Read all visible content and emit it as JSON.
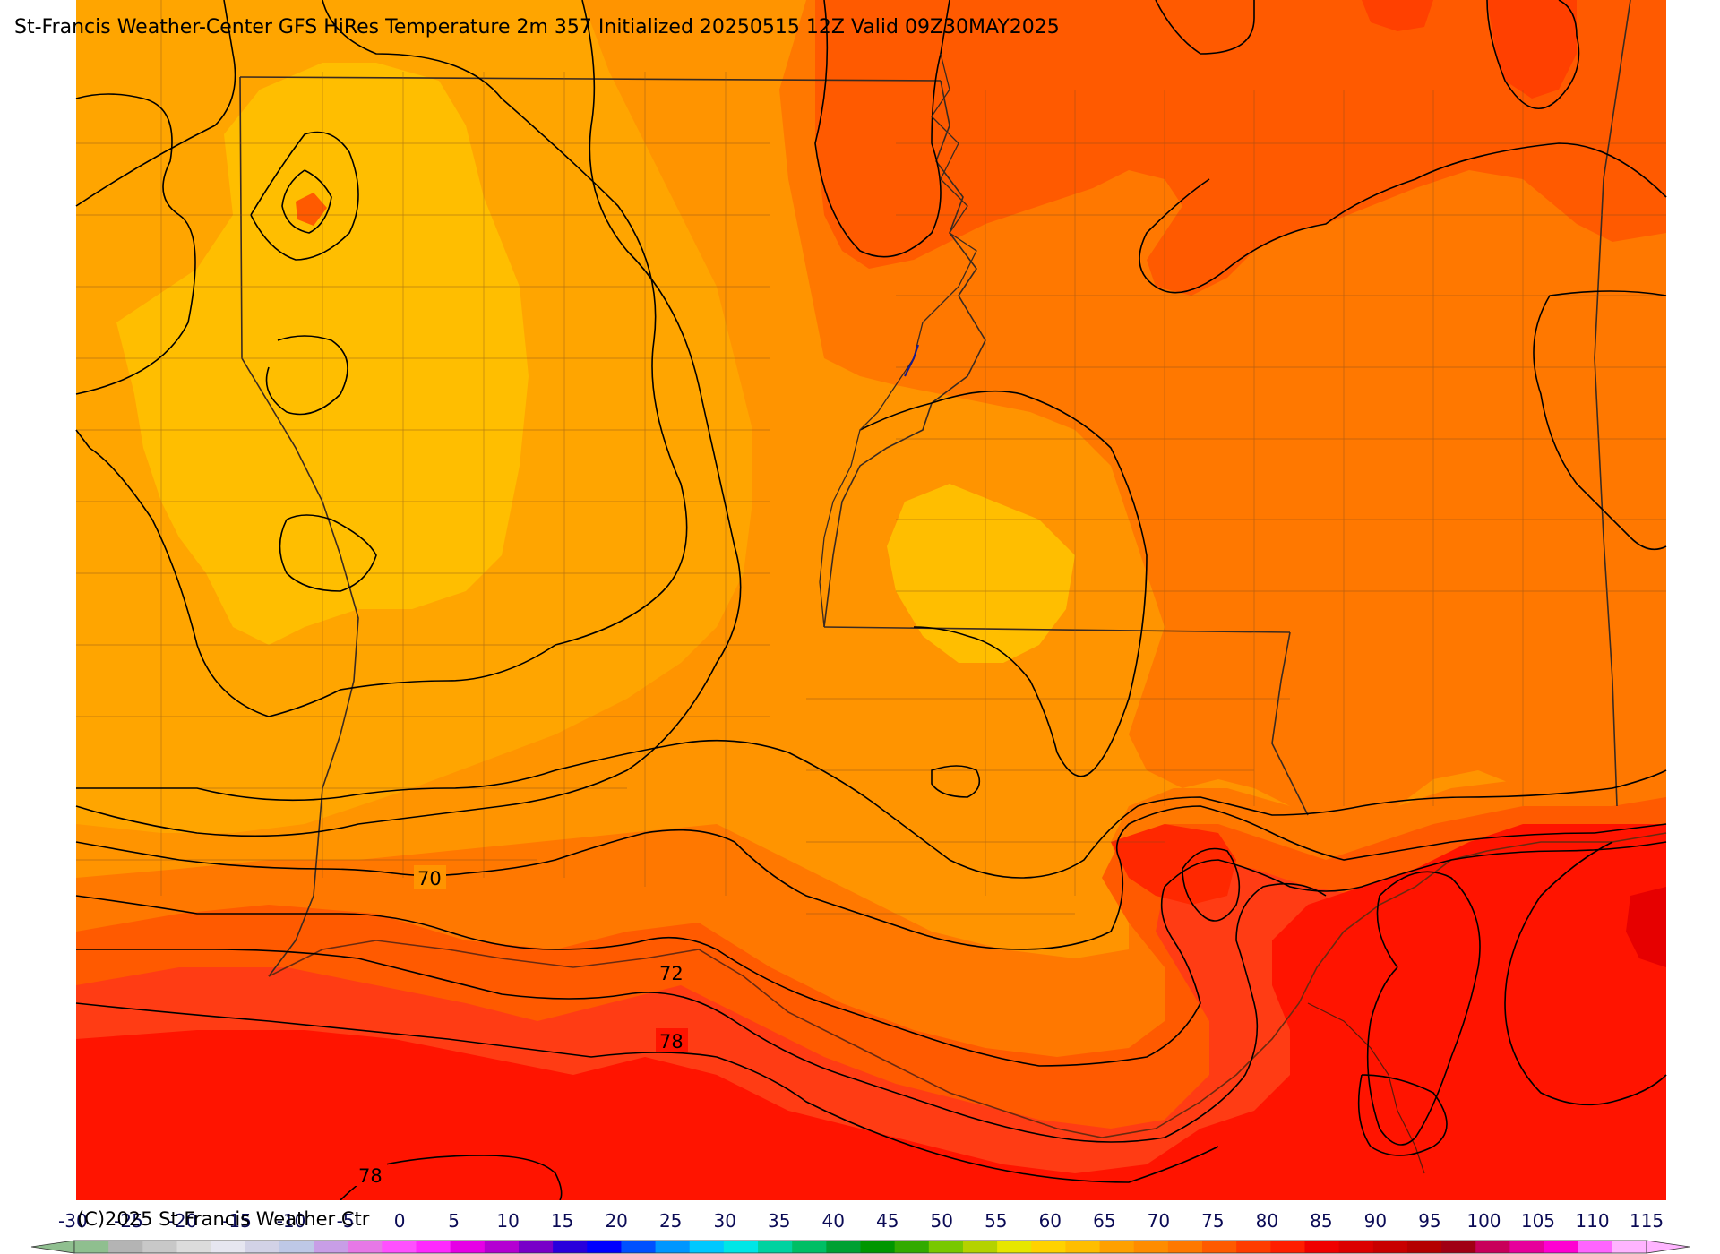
{
  "title": "St-Francis Weather-Center GFS HiRes Temperature 2m  357 Initialized 20250515 12Z Valid 09Z30MAY2025",
  "copyright": "(C)2025 St Francis Weather Ctr",
  "contour_labels": [
    "70",
    "72",
    "78",
    "78"
  ],
  "colorbar": {
    "tick_labels": [
      "-30",
      "-25",
      "-20",
      "-15",
      "-10",
      "-5",
      "0",
      "5",
      "10",
      "15",
      "20",
      "25",
      "30",
      "35",
      "40",
      "45",
      "50",
      "55",
      "60",
      "65",
      "70",
      "75",
      "80",
      "85",
      "90",
      "95",
      "100",
      "105",
      "110",
      "115"
    ],
    "min": -30,
    "max": 115,
    "step": 5,
    "bin_colors": [
      "#8fbf8f",
      "#b4b4b4",
      "#c8c8c8",
      "#dcdcdc",
      "#e6e6f0",
      "#d2d2e6",
      "#bec8e6",
      "#c89ee6",
      "#e678e6",
      "#ff50ff",
      "#ff28ff",
      "#e600e6",
      "#b400d2",
      "#7800c8",
      "#2800dc",
      "#0000ff",
      "#0050ff",
      "#0096ff",
      "#00c8ff",
      "#00e6e6",
      "#00d2a0",
      "#00be64",
      "#00a032",
      "#009600",
      "#32aa00",
      "#78c800",
      "#b4d200",
      "#e6e600",
      "#ffd200",
      "#ffbe00",
      "#ffa000",
      "#ff8c00",
      "#ff7800",
      "#ff5a00",
      "#ff3c00",
      "#ff1e00",
      "#f00000",
      "#dc0000",
      "#c80000",
      "#b40000",
      "#a00014",
      "#c8005a",
      "#e6009b",
      "#ff00d2",
      "#ff64ff",
      "#ffb4ff"
    ]
  },
  "field_colors": {
    "t60": "#ffbe00",
    "t65": "#ffa500",
    "t70": "#ff9400",
    "t72": "#ff7800",
    "t75": "#ff5a00",
    "t78": "#ff3c14",
    "t80": "#ff1400",
    "t85": "#e60000"
  }
}
